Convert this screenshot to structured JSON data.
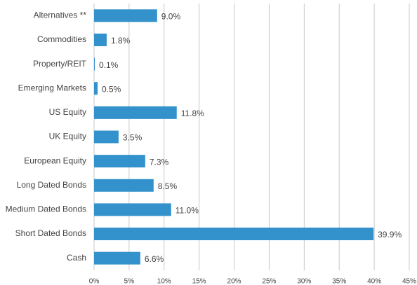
{
  "chart_data": {
    "type": "bar",
    "orientation": "horizontal",
    "categories": [
      "Alternatives **",
      "Commodities",
      "Property/REIT",
      "Emerging Markets",
      "US Equity",
      "UK Equity",
      "European Equity",
      "Long Dated Bonds",
      "Medium Dated Bonds",
      "Short Dated Bonds",
      "Cash"
    ],
    "values": [
      9.0,
      1.8,
      0.1,
      0.5,
      11.8,
      3.5,
      7.3,
      8.5,
      11.0,
      39.9,
      6.6
    ],
    "value_labels": [
      "9.0%",
      "1.8%",
      "0.1%",
      "0.5%",
      "11.8%",
      "3.5%",
      "7.3%",
      "8.5%",
      "11.0%",
      "39.9%",
      "6.6%"
    ],
    "color": "#3391cc",
    "xlim": [
      0,
      45
    ],
    "xticks": [
      {
        "value": 0,
        "label": "0%"
      },
      {
        "value": 5,
        "label": "5%"
      },
      {
        "value": 10,
        "label": "10%"
      },
      {
        "value": 15,
        "label": "15%"
      },
      {
        "value": 20,
        "label": "20%"
      },
      {
        "value": 25,
        "label": "25%"
      },
      {
        "value": 30,
        "label": "30%"
      },
      {
        "value": 35,
        "label": "35%"
      },
      {
        "value": 40,
        "label": "40%"
      },
      {
        "value": 45,
        "label": "45%"
      }
    ],
    "grid": true
  }
}
